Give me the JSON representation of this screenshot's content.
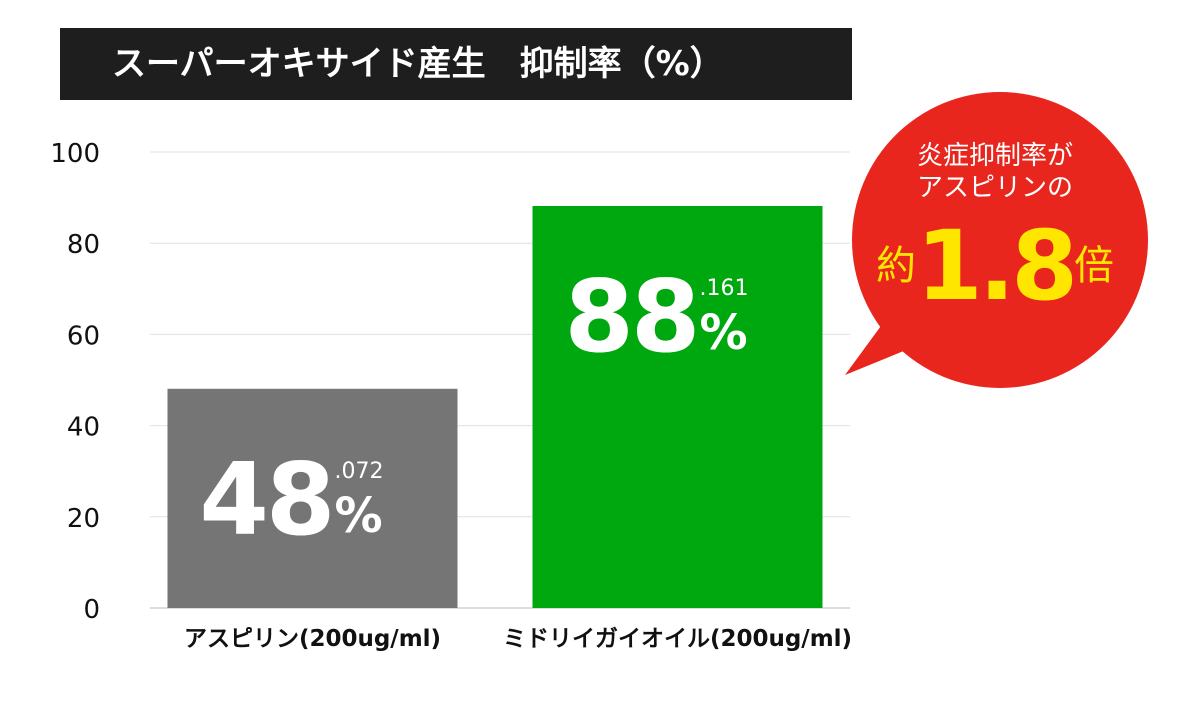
{
  "title": "スーパーオキサイド産生　抑制率（%）",
  "chart_data": {
    "type": "bar",
    "categories": [
      "アスピリン(200ug/ml)",
      "ミドリイガイオイル(200ug/ml)"
    ],
    "values": [
      48.072,
      88.161
    ],
    "value_labels": [
      {
        "main": "48",
        "decimal": ".072",
        "unit": "%"
      },
      {
        "main": "88",
        "decimal": ".161",
        "unit": "%"
      }
    ],
    "colors": [
      "#757575",
      "#00a80f"
    ],
    "ylim": [
      0,
      100
    ],
    "yticks": [
      0,
      20,
      40,
      60,
      80,
      100
    ],
    "grid": true
  },
  "callout": {
    "line1": "炎症抑制率が",
    "line2": "アスピリンの",
    "prefix": "約",
    "number": "1.8",
    "suffix": "倍",
    "bubble_color": "#e8261e",
    "highlight_color": "#ffe600"
  }
}
